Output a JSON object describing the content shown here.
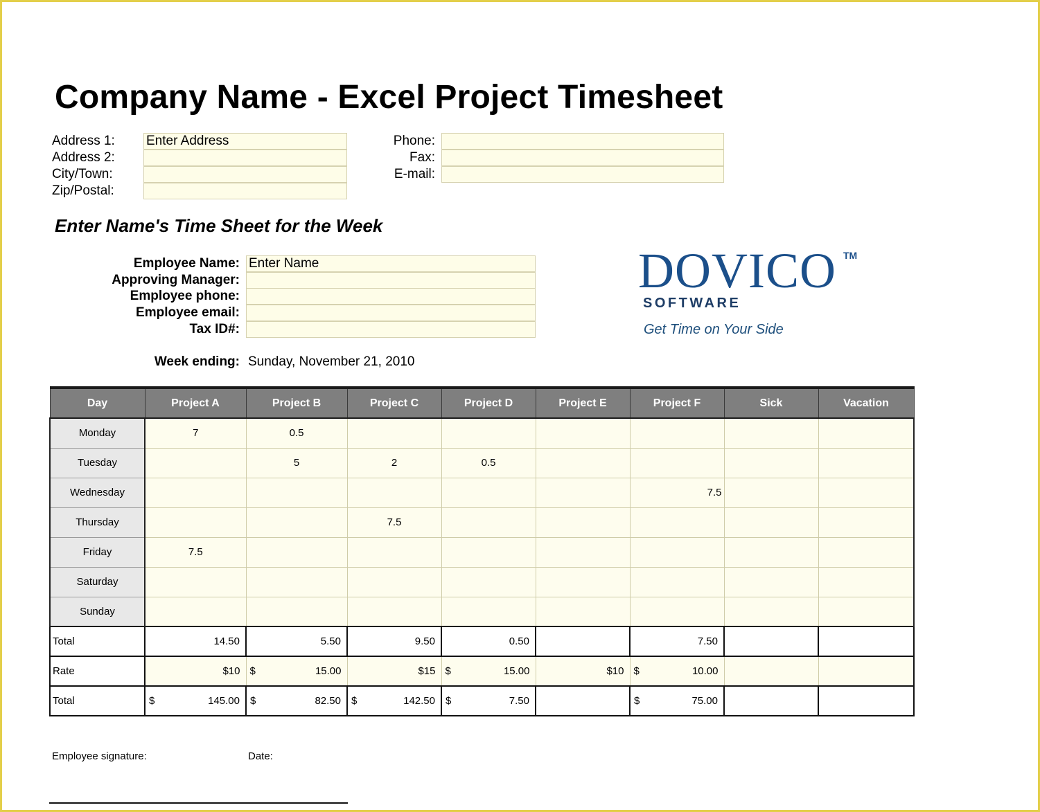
{
  "title": "Company Name - Excel Project Timesheet",
  "address": {
    "labels": [
      "Address 1:",
      "Address 2:",
      "City/Town:",
      "Zip/Postal:"
    ],
    "values": [
      "Enter Address",
      "",
      "",
      ""
    ]
  },
  "contact": {
    "labels": [
      "Phone:",
      "Fax:",
      "E-mail:"
    ],
    "values": [
      "",
      "",
      ""
    ]
  },
  "subtitle": "Enter Name's Time Sheet for the Week",
  "employee": {
    "labels": [
      "Employee Name:",
      "Approving Manager:",
      "Employee phone:",
      "Employee email:",
      "Tax ID#:"
    ],
    "values": [
      "Enter Name",
      "",
      "",
      "",
      ""
    ]
  },
  "logo": {
    "brand": "DOVICO",
    "tm": "TM",
    "software": "SOFTWARE",
    "tagline": "Get Time on Your Side",
    "color": "#1b4f8a"
  },
  "week": {
    "label": "Week ending:",
    "value": "Sunday, November 21, 2010"
  },
  "table": {
    "headers": [
      "Day",
      "Project A",
      "Project B",
      "Project C",
      "Project D",
      "Project E",
      "Project F",
      "Sick",
      "Vacation"
    ],
    "rows": [
      {
        "day": "Monday",
        "cells": [
          "7",
          "0.5",
          "",
          "",
          "",
          "",
          "",
          ""
        ]
      },
      {
        "day": "Tuesday",
        "cells": [
          "",
          "5",
          "2",
          "0.5",
          "",
          "",
          "",
          ""
        ]
      },
      {
        "day": "Wednesday",
        "cells": [
          "",
          "",
          "",
          "",
          "",
          "7.5",
          "",
          ""
        ]
      },
      {
        "day": "Thursday",
        "cells": [
          "",
          "",
          "7.5",
          "",
          "",
          "",
          "",
          ""
        ]
      },
      {
        "day": "Friday",
        "cells": [
          "7.5",
          "",
          "",
          "",
          "",
          "",
          "",
          ""
        ]
      },
      {
        "day": "Saturday",
        "cells": [
          "",
          "",
          "",
          "",
          "",
          "",
          "",
          ""
        ]
      },
      {
        "day": "Sunday",
        "cells": [
          "",
          "",
          "",
          "",
          "",
          "",
          "",
          ""
        ]
      }
    ],
    "total_hours": {
      "label": "Total",
      "cells": [
        "14.50",
        "5.50",
        "9.50",
        "0.50",
        "",
        "7.50",
        "",
        ""
      ]
    },
    "rate": {
      "label": "Rate",
      "cells": [
        {
          "cur": "",
          "val": "$10"
        },
        {
          "cur": "$",
          "val": "15.00"
        },
        {
          "cur": "",
          "val": "$15"
        },
        {
          "cur": "$",
          "val": "15.00"
        },
        {
          "cur": "",
          "val": "$10"
        },
        {
          "cur": "$",
          "val": "10.00"
        },
        {
          "cur": "",
          "val": ""
        },
        {
          "cur": "",
          "val": ""
        }
      ]
    },
    "total_amount": {
      "label": "Total",
      "cells": [
        {
          "cur": "$",
          "val": "145.00"
        },
        {
          "cur": "$",
          "val": "82.50"
        },
        {
          "cur": "$",
          "val": "142.50"
        },
        {
          "cur": "$",
          "val": "7.50"
        },
        {
          "cur": "",
          "val": ""
        },
        {
          "cur": "$",
          "val": "75.00"
        },
        {
          "cur": "",
          "val": ""
        },
        {
          "cur": "",
          "val": ""
        }
      ]
    }
  },
  "signature": {
    "employee_label": "Employee signature:",
    "date_label": "Date:"
  }
}
